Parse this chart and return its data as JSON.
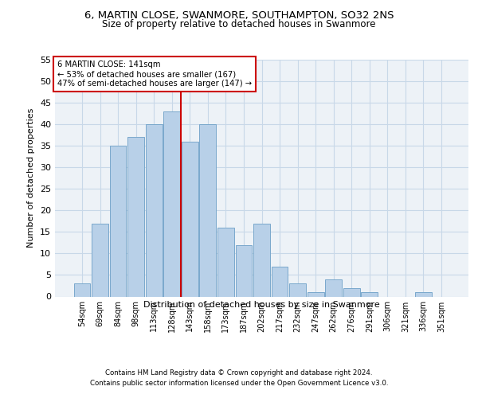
{
  "title1": "6, MARTIN CLOSE, SWANMORE, SOUTHAMPTON, SO32 2NS",
  "title2": "Size of property relative to detached houses in Swanmore",
  "xlabel": "Distribution of detached houses by size in Swanmore",
  "ylabel": "Number of detached properties",
  "categories": [
    "54sqm",
    "69sqm",
    "84sqm",
    "98sqm",
    "113sqm",
    "128sqm",
    "143sqm",
    "158sqm",
    "173sqm",
    "187sqm",
    "202sqm",
    "217sqm",
    "232sqm",
    "247sqm",
    "262sqm",
    "276sqm",
    "291sqm",
    "306sqm",
    "321sqm",
    "336sqm",
    "351sqm"
  ],
  "values": [
    3,
    17,
    35,
    37,
    40,
    43,
    36,
    40,
    16,
    12,
    17,
    7,
    3,
    1,
    4,
    2,
    1,
    0,
    0,
    1,
    0
  ],
  "bar_color": "#b8d0e8",
  "bar_edge_color": "#7aa8cc",
  "annotation_title": "6 MARTIN CLOSE: 141sqm",
  "annotation_line1": "← 53% of detached houses are smaller (167)",
  "annotation_line2": "47% of semi-detached houses are larger (147) →",
  "annotation_box_color": "#ffffff",
  "annotation_box_edge": "#cc0000",
  "vline_color": "#cc0000",
  "grid_color": "#c8d8e8",
  "ylim": [
    0,
    55
  ],
  "yticks": [
    0,
    5,
    10,
    15,
    20,
    25,
    30,
    35,
    40,
    45,
    50,
    55
  ],
  "footer1": "Contains HM Land Registry data © Crown copyright and database right 2024.",
  "footer2": "Contains public sector information licensed under the Open Government Licence v3.0.",
  "background_color": "#edf2f7"
}
